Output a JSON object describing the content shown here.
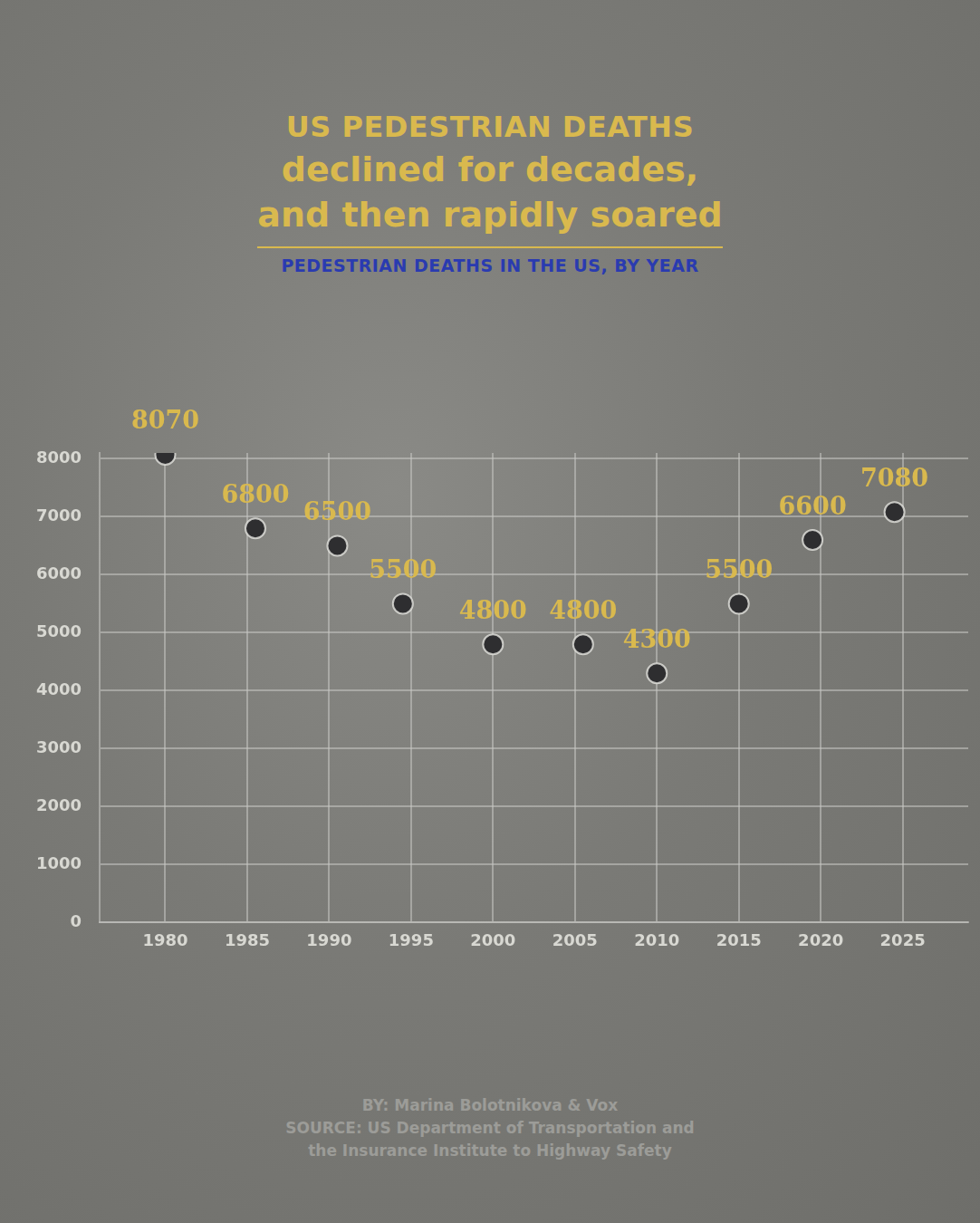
{
  "chart_data": {
    "type": "scatter",
    "title": "US PEDESTRIAN DEATHS",
    "headline": [
      "declined for decades,",
      "and then rapidly soared"
    ],
    "subtitle": "PEDESTRIAN DEATHS IN THE US, BY YEAR",
    "credits": [
      "BY: Marina Bolotnikova & Vox",
      "SOURCE: US Department of Transportation and",
      "the Insurance Institute to Highway Safety"
    ],
    "x": [
      1980,
      1985.5,
      1990.5,
      1994.5,
      2000,
      2005.5,
      2010,
      2015,
      2019.5,
      2024.5
    ],
    "values": [
      8070,
      6800,
      6500,
      5500,
      4800,
      4800,
      4300,
      5500,
      6600,
      7080
    ],
    "color": "#2e2e30",
    "marker": "circle",
    "xlim": [
      1976,
      2029
    ],
    "xticks": [
      1980,
      1985,
      1990,
      1995,
      2000,
      2005,
      2010,
      2015,
      2020,
      2025
    ],
    "ylim": [
      0,
      8100
    ],
    "yticks": [
      0,
      1000,
      2000,
      3000,
      4000,
      5000,
      6000,
      7000,
      8000
    ],
    "grid": true,
    "data_labels": true
  }
}
